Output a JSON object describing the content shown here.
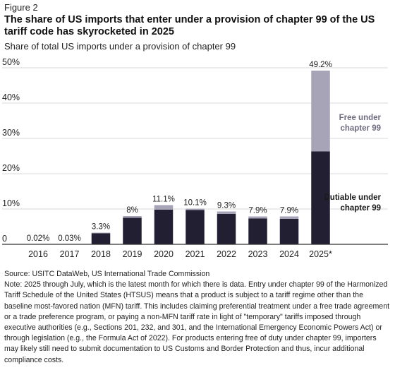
{
  "figure_label": "Figure 2",
  "title": "The share of US imports that enter under a provision of chapter 99 of the US tariff code has skyrocketed in 2025",
  "subtitle": "Share of total US imports under a provision of chapter 99",
  "colors": {
    "dutiable": "#231f33",
    "free": "#a7a4b8",
    "gridline": "#d9d9d9",
    "axis": "#333333"
  },
  "chart_data": {
    "type": "bar",
    "stacked": true,
    "categories": [
      "2016",
      "2017",
      "2018",
      "2019",
      "2020",
      "2021",
      "2022",
      "2023",
      "2024",
      "2025*"
    ],
    "totals_labels": [
      "0.02%",
      "0.03%",
      "3.3%",
      "8%",
      "11.1%",
      "10.1%",
      "9.3%",
      "7.9%",
      "7.9%",
      "49.2%"
    ],
    "series": [
      {
        "name": "Dutiable under chapter 99",
        "name_lines": [
          "Dutiable under",
          "chapter 99"
        ],
        "color": "#231f33",
        "values": [
          0.01,
          0.02,
          3.1,
          7.5,
          9.8,
          9.7,
          8.6,
          7.3,
          7.2,
          26.3
        ]
      },
      {
        "name": "Free under chapter 99",
        "name_lines": [
          "Free under",
          "chapter 99"
        ],
        "color": "#a7a4b8",
        "values": [
          0.01,
          0.01,
          0.2,
          0.5,
          1.3,
          0.4,
          0.7,
          0.6,
          0.7,
          22.9
        ]
      }
    ],
    "yticks": [
      "0",
      "10%",
      "20%",
      "30%",
      "40%",
      "50%"
    ],
    "ytick_values": [
      0,
      10,
      20,
      30,
      40,
      50
    ],
    "ylim": [
      0,
      50
    ],
    "grid": true,
    "legend": "inline-right"
  },
  "source": "Source: USITC DataWeb, US International Trade Commission",
  "note": "Note: 2025 through July, which is the latest month for which there is data. Entry under chapter 99 of the Harmonized Tariff Schedule of the United States (HTSUS) means that a product is subject to a tariff regime other than the baseline most-favored nation (MFN) tariff. This includes claiming preferential treatment under a free trade agreement or a trade preference program, or paying a non-MFN tariff rate in light of \"temporary\" tariffs imposed through executive authorities (e.g., Sections 201, 232, and 301, and the International Emergency Economic Powers Act) or through legislation (e.g., the Formula Act of 2022). For products entering free of duty under chapter 99, importers may likely still need to submit documentation to US Customs and Border Protection and thus, incur additional compliance costs."
}
